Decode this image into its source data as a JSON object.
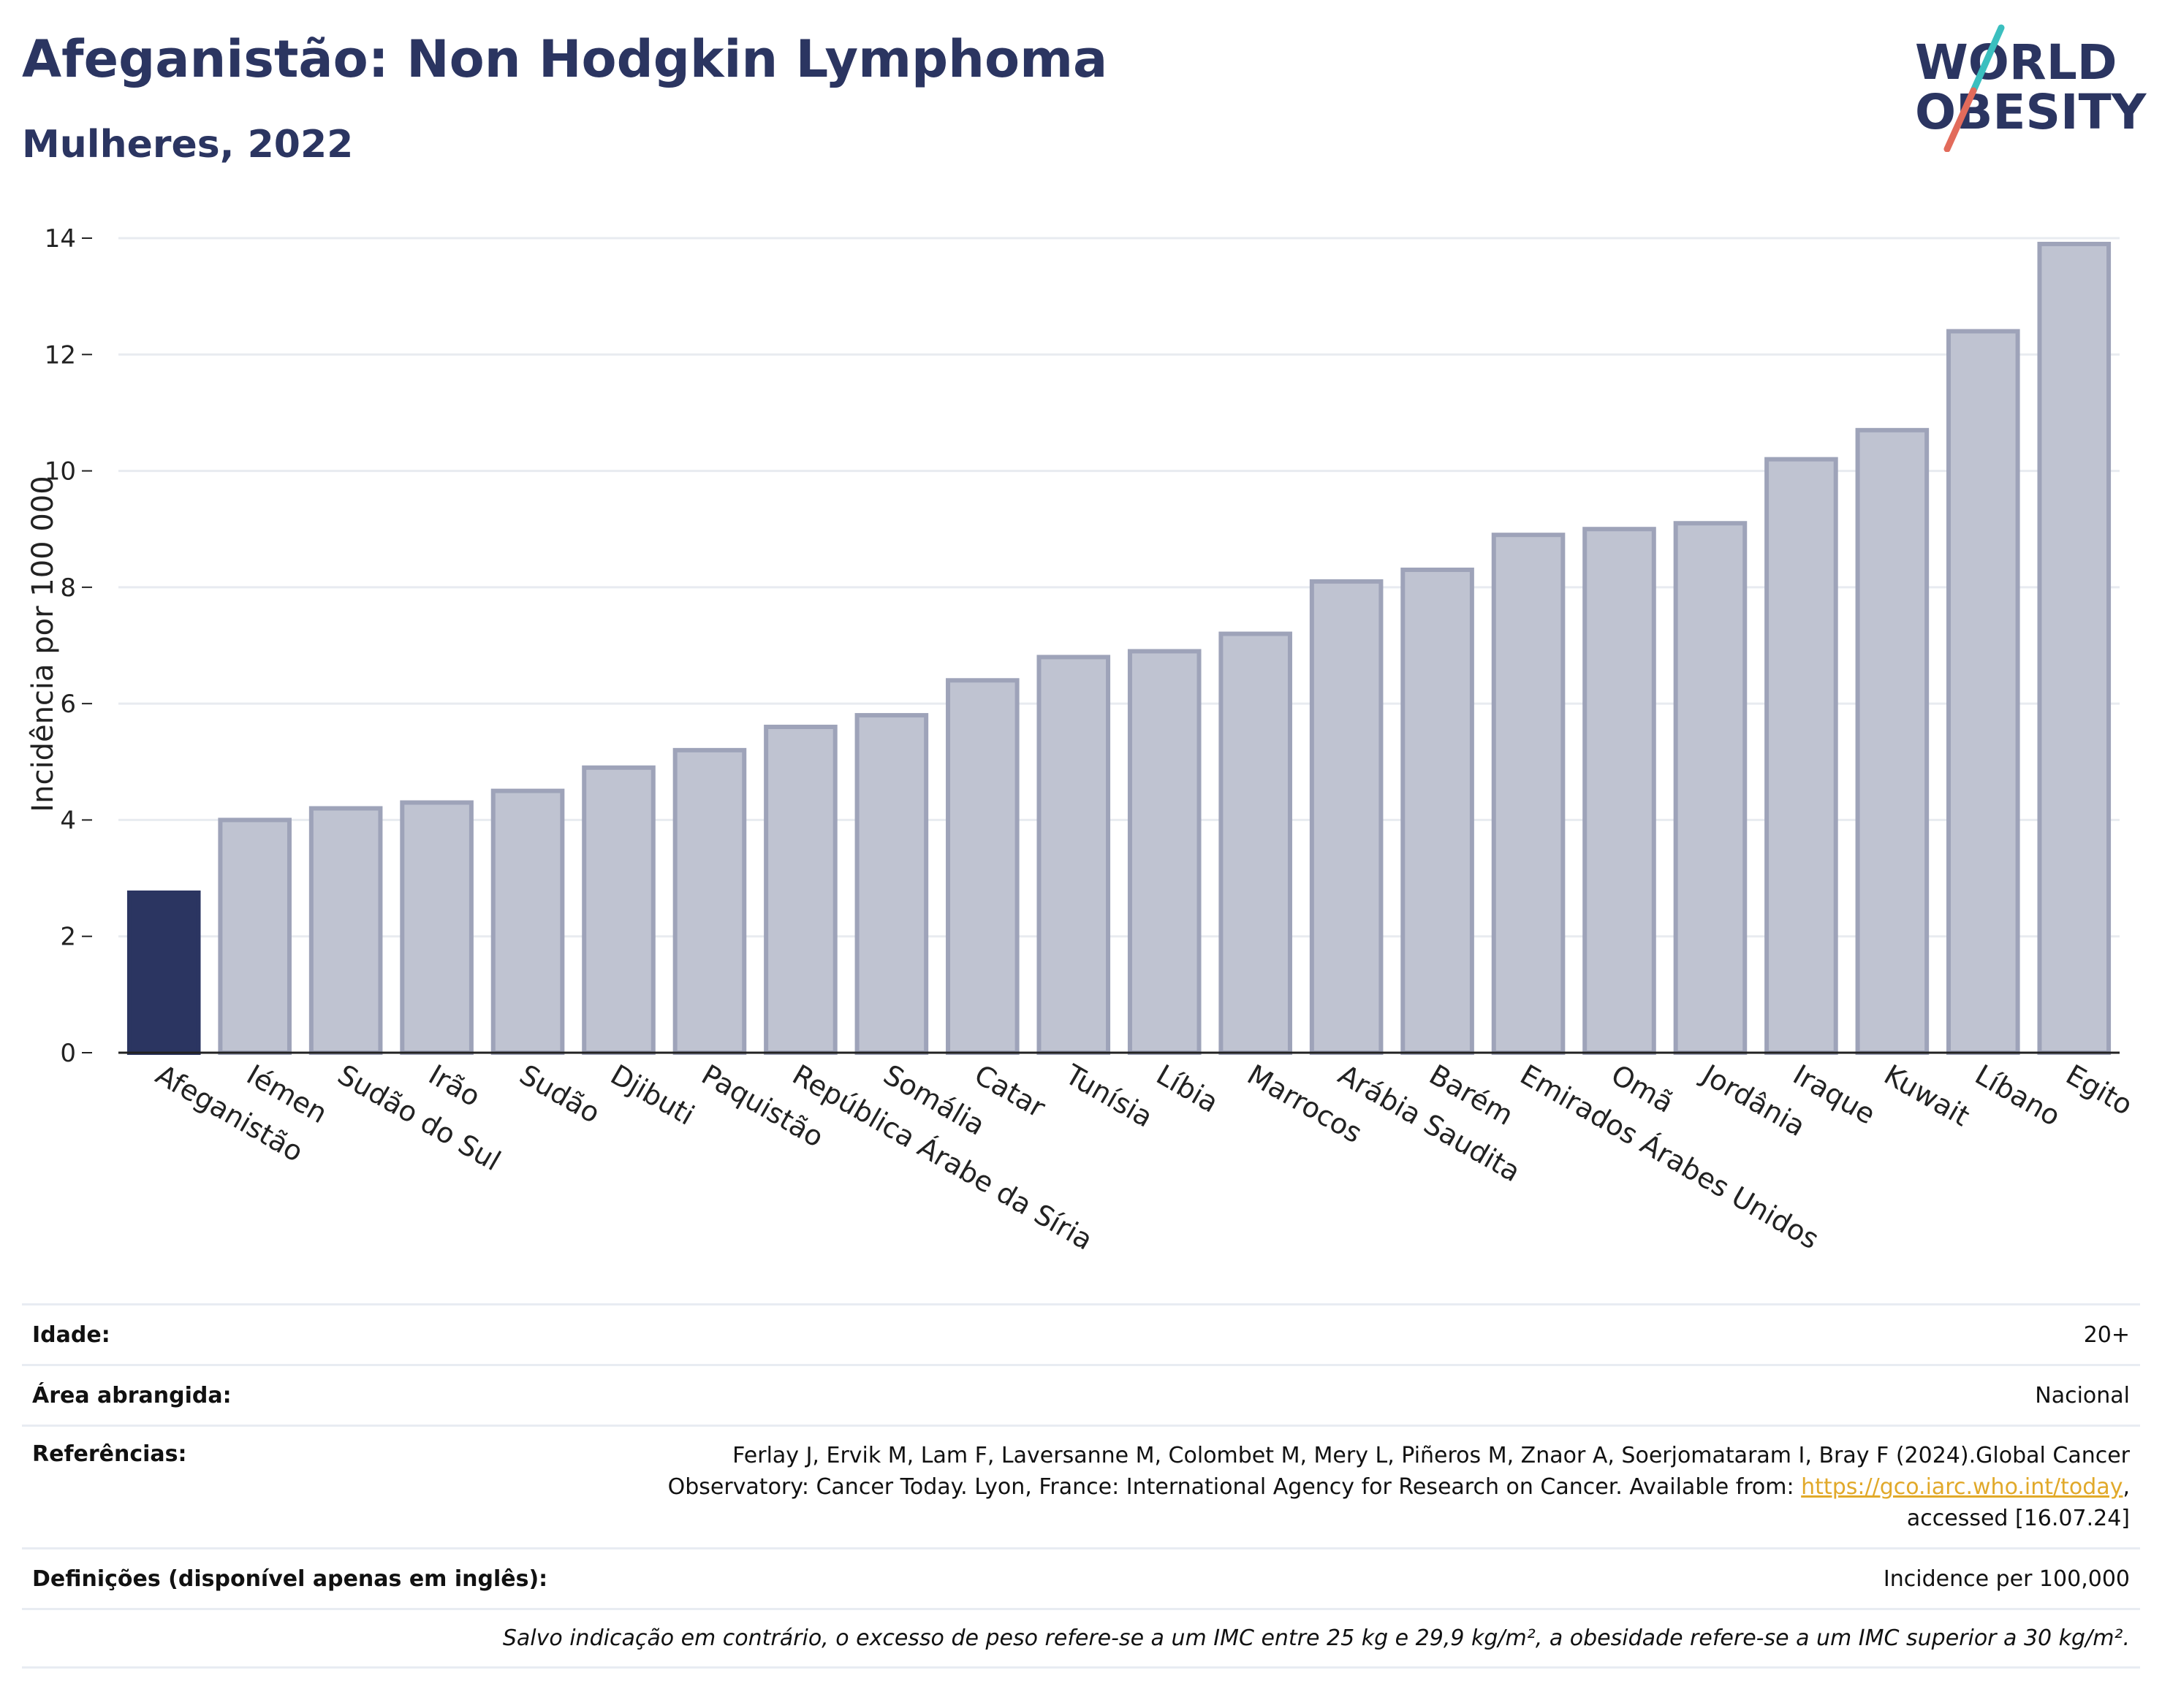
{
  "header": {
    "title": "Afeganistão: Non Hodgkin Lymphoma",
    "subtitle": "Mulheres, 2022"
  },
  "logo": {
    "line1": "WORLD",
    "line2": "OBESITY",
    "colors": {
      "text": "#2b3561",
      "slash_top": "#3bbfbf",
      "slash_bottom": "#e26b5b"
    }
  },
  "chart_data": {
    "type": "bar",
    "title": "Afeganistão: Non Hodgkin Lymphoma",
    "subtitle": "Mulheres, 2022",
    "xlabel": "",
    "ylabel": "Incidência por 100 000",
    "ylim": [
      0,
      14
    ],
    "yticks": [
      0,
      2,
      4,
      6,
      8,
      10,
      12,
      14
    ],
    "grid": true,
    "legend": "none",
    "categories": [
      "Afeganistão",
      "Iémen",
      "Sudão do Sul",
      "Irão",
      "Sudão",
      "Djibuti",
      "Paquistão",
      "República Árabe da Síria",
      "Somália",
      "Catar",
      "Tunísia",
      "Líbia",
      "Marrocos",
      "Arábia Saudita",
      "Barém",
      "Emirados Árabes Unidos",
      "Omã",
      "Jordânia",
      "Iraque",
      "Kuwait",
      "Líbano",
      "Egito"
    ],
    "values": [
      2.75,
      4.0,
      4.2,
      4.3,
      4.5,
      4.9,
      5.2,
      5.6,
      5.8,
      6.4,
      6.8,
      6.9,
      7.2,
      8.1,
      8.3,
      8.9,
      9.0,
      9.1,
      10.2,
      10.7,
      12.4,
      13.9
    ],
    "highlight": "Afeganistão",
    "colors": {
      "highlight": "#2b3561",
      "bar_fill": "#bfc3d1",
      "bar_stroke": "#9ea3b9"
    }
  },
  "info": {
    "age_label": "Idade:",
    "age_value": "20+",
    "area_label": "Área abrangida:",
    "area_value": "Nacional",
    "refs_label": "Referências:",
    "refs_line1": "Ferlay J, Ervik M, Lam F, Laversanne M, Colombet M, Mery L, Piñeros M, Znaor A, Soerjomataram I, Bray F (2024).Global Cancer",
    "refs_line2": "Observatory: Cancer Today. Lyon, France: International Agency for Research on Cancer. Available from: ",
    "refs_link": "https://gco.iarc.who.int/today",
    "refs_line2_end": ",",
    "refs_line3": "accessed [16.07.24]",
    "defs_label": "Definições (disponível apenas em inglês):",
    "defs_value": "Incidence per 100,000",
    "note": "Salvo indicação em contrário, o excesso de peso refere-se a um IMC entre 25 kg e 29,9 kg/m², a obesidade refere-se a um IMC superior a 30 kg/m²."
  }
}
